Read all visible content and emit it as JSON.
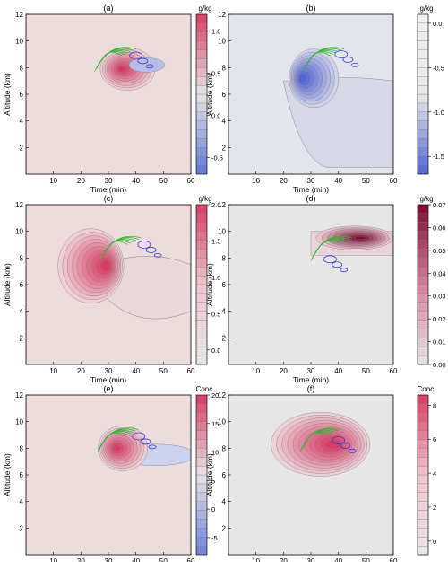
{
  "figure": {
    "x_axis_label": "Time (min)",
    "y_axis_label": "Altitude (km)",
    "x_ticks": [
      10,
      20,
      30,
      40,
      50,
      60
    ],
    "y_ticks": [
      2,
      4,
      6,
      8,
      10,
      12
    ],
    "xlim": [
      0,
      60
    ],
    "ylim": [
      0,
      12
    ]
  },
  "chart_data": [
    {
      "type": "heatmap",
      "panel": "(a)",
      "unit": "g/kg",
      "xlabel": "Time (min)",
      "ylabel": "Altitude (km)",
      "xlim": [
        0,
        60
      ],
      "ylim": [
        0,
        12
      ],
      "colorbar": {
        "min": -0.7,
        "max": 1.2,
        "ticks": [
          -0.5,
          0.0,
          0.5,
          1.0
        ],
        "tick_labels": [
          "-0.5",
          "0.0",
          "0.5",
          "1.0"
        ],
        "low_color": "#5e75d6",
        "mid_color": "#e6e6e6",
        "high_color": "#d93b63"
      },
      "background_color": "#ecdcdc",
      "features": {
        "core_center": [
          35,
          7.9
        ],
        "core_value_max": 1.1,
        "green_contours_center": [
          33,
          9.0
        ],
        "blue_contours_center": [
          40,
          8.9
        ]
      }
    },
    {
      "type": "heatmap",
      "panel": "(b)",
      "unit": "g/kg",
      "xlabel": "Time (min)",
      "ylabel": "Altitude (km)",
      "xlim": [
        0,
        60
      ],
      "ylim": [
        0,
        12
      ],
      "colorbar": {
        "min": -1.7,
        "max": 0.1,
        "ticks": [
          -1.5,
          -1.0,
          -0.5,
          0.0
        ],
        "tick_labels": [
          "-1.5",
          "-1.0",
          "-0.5",
          "0.0"
        ],
        "low_color": "#4f62d4",
        "mid_color": "#e8e8ea",
        "high_color": "#efefef"
      },
      "background_color": "#e4e5ec",
      "features": {
        "core_center": [
          24,
          6.5
        ],
        "core_value_min": -1.6,
        "green_contours_center": [
          35,
          9.0
        ],
        "blue_contours_center": [
          41,
          9.0
        ]
      }
    },
    {
      "type": "heatmap",
      "panel": "(c)",
      "unit": "g/kg",
      "xlabel": "Time (min)",
      "ylabel": "Altitude (km)",
      "xlim": [
        0,
        60
      ],
      "ylim": [
        0,
        12
      ],
      "colorbar": {
        "min": -0.2,
        "max": 2.0,
        "ticks": [
          0.0,
          0.5,
          1.0,
          1.5,
          2.0
        ],
        "tick_labels": [
          "0.0",
          "0.5",
          "1.0",
          "1.5",
          "2.0"
        ],
        "low_color": "#e6e6e6",
        "mid_color": "#efc6cf",
        "high_color": "#d93b63"
      },
      "background_color": "#ecdcdc",
      "features": {
        "core_center": [
          24,
          6.8
        ],
        "core_value_max": 1.9,
        "green_contours_center": [
          35,
          9.1
        ],
        "blue_contours_center": [
          43,
          9.0
        ]
      }
    },
    {
      "type": "heatmap",
      "panel": "(d)",
      "unit": "g/kg",
      "xlabel": "Time (min)",
      "ylabel": "Altitude (km)",
      "xlim": [
        0,
        60
      ],
      "ylim": [
        0,
        12
      ],
      "colorbar": {
        "min": 0.0,
        "max": 0.07,
        "ticks": [
          0.0,
          0.01,
          0.02,
          0.03,
          0.04,
          0.05,
          0.06,
          0.07
        ],
        "tick_labels": [
          "0.00",
          "0.01",
          "0.02",
          "0.03",
          "0.04",
          "0.05",
          "0.06",
          "0.07"
        ],
        "low_color": "#e4e4e4",
        "mid_color": "#d87f9b",
        "high_color": "#7a0c30"
      },
      "background_color": "#e6e6e6",
      "features": {
        "core_center": [
          48,
          9.5
        ],
        "core_value_max": 0.065,
        "green_contours_center": [
          38,
          9.1
        ],
        "blue_contours_center": [
          37,
          7.9
        ]
      }
    },
    {
      "type": "heatmap",
      "panel": "(e)",
      "unit": "Conc.",
      "xlabel": "Time (min)",
      "ylabel": "Altitude (km)",
      "xlim": [
        0,
        60
      ],
      "ylim": [
        0,
        12
      ],
      "colorbar": {
        "min": -8,
        "max": 20,
        "ticks": [
          -5,
          0,
          5,
          10,
          15,
          20
        ],
        "tick_labels": [
          "-5",
          "0",
          "5",
          "10",
          "15",
          "20"
        ],
        "low_color": "#6a80dc",
        "mid_color": "#e8e2e4",
        "high_color": "#d93b63"
      },
      "background_color": "#ecdcdc",
      "features": {
        "core_center": [
          33,
          8.0
        ],
        "core_value_max": 19,
        "green_contours_center": [
          34,
          9.0
        ],
        "blue_contours_center": [
          41,
          8.9
        ]
      }
    },
    {
      "type": "heatmap",
      "panel": "(f)",
      "unit": "Conc.",
      "xlabel": "Time (min)",
      "ylabel": "Altitude (km)",
      "xlim": [
        0,
        60
      ],
      "ylim": [
        0,
        12
      ],
      "colorbar": {
        "min": -0.8,
        "max": 8.6,
        "ticks": [
          0,
          2,
          4,
          6,
          8
        ],
        "tick_labels": [
          "0",
          "2",
          "4",
          "6",
          "8"
        ],
        "low_color": "#e6e6e6",
        "mid_color": "#efc3cd",
        "high_color": "#d93b63"
      },
      "background_color": "#e6e6e6",
      "features": {
        "core_center": [
          35,
          8.3
        ],
        "core_value_max": 8.2,
        "green_contours_center": [
          34,
          9.0
        ],
        "blue_contours_center": [
          40,
          8.6
        ]
      }
    }
  ]
}
